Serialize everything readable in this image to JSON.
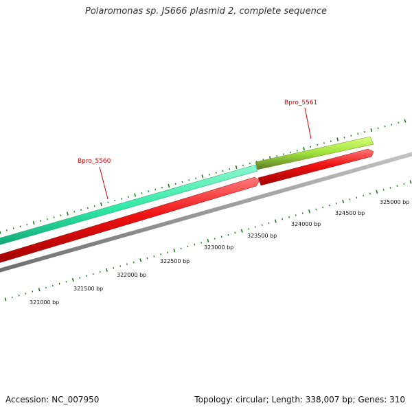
{
  "title": "Polaromonas sp. JS666 plasmid 2, complete sequence",
  "footer": {
    "accession": "Accession: NC_007950",
    "summary": "Topology: circular; Length: 338,007 bp; Genes: 310"
  },
  "colors": {
    "tick": "#1a7a1a",
    "backbone": "#8a8a8a",
    "gene_cds_forward": "#2ee8a6",
    "gene_forward_2": "#9ee23a",
    "gene_reverse": "#ee1111",
    "gene_label": "#cc0000"
  },
  "genes": [
    {
      "name": "Bpro_5560",
      "strand": "forward"
    },
    {
      "name": "Bpro_5561",
      "strand": "forward"
    }
  ],
  "ruler_labels": [
    "321000 bp",
    "321500 bp",
    "322000 bp",
    "322500 bp",
    "323000 bp",
    "323500 bp",
    "324000 bp",
    "324500 bp",
    "325000 bp"
  ]
}
